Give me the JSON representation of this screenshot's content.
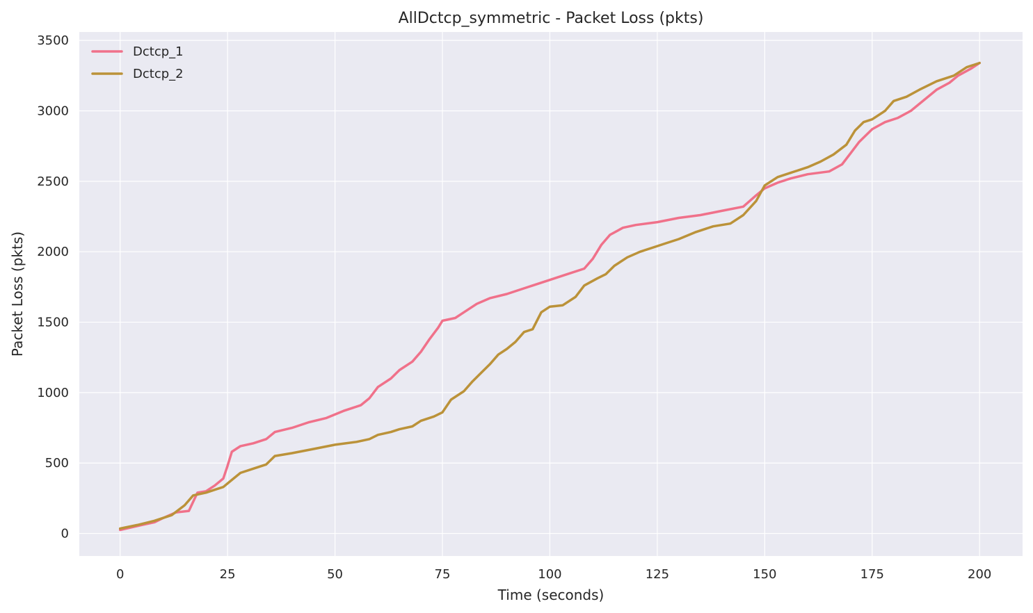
{
  "chart_data": {
    "type": "line",
    "title": "AllDctcp_symmetric - Packet Loss (pkts)",
    "xlabel": "Time (seconds)",
    "ylabel": "Packet Loss (pkts)",
    "xlim": [
      -9.5,
      210
    ],
    "ylim": [
      -160,
      3560
    ],
    "xticks": [
      0,
      25,
      50,
      75,
      100,
      125,
      150,
      175,
      200
    ],
    "yticks": [
      0,
      500,
      1000,
      1500,
      2000,
      2500,
      3000,
      3500
    ],
    "grid": true,
    "legend_position": "top-left",
    "series": [
      {
        "name": "Dctcp_1",
        "color": "#f0718a",
        "points": [
          [
            0,
            25
          ],
          [
            5,
            60
          ],
          [
            8,
            80
          ],
          [
            10,
            110
          ],
          [
            13,
            150
          ],
          [
            16,
            160
          ],
          [
            18,
            290
          ],
          [
            20,
            300
          ],
          [
            22,
            340
          ],
          [
            24,
            390
          ],
          [
            25,
            480
          ],
          [
            26,
            580
          ],
          [
            28,
            620
          ],
          [
            31,
            640
          ],
          [
            34,
            670
          ],
          [
            36,
            720
          ],
          [
            40,
            750
          ],
          [
            44,
            790
          ],
          [
            48,
            820
          ],
          [
            52,
            870
          ],
          [
            56,
            910
          ],
          [
            58,
            960
          ],
          [
            60,
            1040
          ],
          [
            63,
            1100
          ],
          [
            65,
            1160
          ],
          [
            68,
            1220
          ],
          [
            70,
            1290
          ],
          [
            72,
            1380
          ],
          [
            74,
            1460
          ],
          [
            75,
            1510
          ],
          [
            78,
            1530
          ],
          [
            80,
            1570
          ],
          [
            83,
            1630
          ],
          [
            86,
            1670
          ],
          [
            90,
            1700
          ],
          [
            93,
            1730
          ],
          [
            96,
            1760
          ],
          [
            100,
            1800
          ],
          [
            104,
            1840
          ],
          [
            108,
            1880
          ],
          [
            110,
            1950
          ],
          [
            112,
            2050
          ],
          [
            114,
            2120
          ],
          [
            117,
            2170
          ],
          [
            120,
            2190
          ],
          [
            125,
            2210
          ],
          [
            130,
            2240
          ],
          [
            135,
            2260
          ],
          [
            140,
            2290
          ],
          [
            145,
            2320
          ],
          [
            148,
            2400
          ],
          [
            150,
            2450
          ],
          [
            153,
            2490
          ],
          [
            156,
            2520
          ],
          [
            160,
            2550
          ],
          [
            165,
            2570
          ],
          [
            168,
            2620
          ],
          [
            170,
            2700
          ],
          [
            172,
            2780
          ],
          [
            175,
            2870
          ],
          [
            178,
            2920
          ],
          [
            181,
            2950
          ],
          [
            184,
            3000
          ],
          [
            186,
            3050
          ],
          [
            190,
            3150
          ],
          [
            193,
            3200
          ],
          [
            195,
            3250
          ],
          [
            198,
            3300
          ],
          [
            200,
            3340
          ]
        ]
      },
      {
        "name": "Dctcp_2",
        "color": "#bb9239",
        "points": [
          [
            0,
            35
          ],
          [
            4,
            60
          ],
          [
            8,
            90
          ],
          [
            12,
            130
          ],
          [
            15,
            200
          ],
          [
            17,
            270
          ],
          [
            20,
            290
          ],
          [
            22,
            310
          ],
          [
            24,
            330
          ],
          [
            26,
            380
          ],
          [
            28,
            430
          ],
          [
            31,
            460
          ],
          [
            34,
            490
          ],
          [
            36,
            550
          ],
          [
            40,
            570
          ],
          [
            45,
            600
          ],
          [
            50,
            630
          ],
          [
            55,
            650
          ],
          [
            58,
            670
          ],
          [
            60,
            700
          ],
          [
            63,
            720
          ],
          [
            65,
            740
          ],
          [
            68,
            760
          ],
          [
            70,
            800
          ],
          [
            73,
            830
          ],
          [
            75,
            860
          ],
          [
            77,
            950
          ],
          [
            80,
            1010
          ],
          [
            82,
            1080
          ],
          [
            84,
            1140
          ],
          [
            86,
            1200
          ],
          [
            88,
            1270
          ],
          [
            90,
            1310
          ],
          [
            92,
            1360
          ],
          [
            94,
            1430
          ],
          [
            96,
            1450
          ],
          [
            98,
            1570
          ],
          [
            100,
            1610
          ],
          [
            103,
            1620
          ],
          [
            106,
            1680
          ],
          [
            108,
            1760
          ],
          [
            111,
            1810
          ],
          [
            113,
            1840
          ],
          [
            115,
            1900
          ],
          [
            118,
            1960
          ],
          [
            121,
            2000
          ],
          [
            124,
            2030
          ],
          [
            127,
            2060
          ],
          [
            130,
            2090
          ],
          [
            134,
            2140
          ],
          [
            138,
            2180
          ],
          [
            142,
            2200
          ],
          [
            145,
            2260
          ],
          [
            148,
            2360
          ],
          [
            150,
            2470
          ],
          [
            153,
            2530
          ],
          [
            156,
            2560
          ],
          [
            160,
            2600
          ],
          [
            163,
            2640
          ],
          [
            166,
            2690
          ],
          [
            169,
            2760
          ],
          [
            171,
            2860
          ],
          [
            173,
            2920
          ],
          [
            175,
            2940
          ],
          [
            178,
            3000
          ],
          [
            180,
            3070
          ],
          [
            183,
            3100
          ],
          [
            186,
            3150
          ],
          [
            190,
            3210
          ],
          [
            194,
            3250
          ],
          [
            197,
            3310
          ],
          [
            200,
            3340
          ]
        ]
      }
    ]
  }
}
